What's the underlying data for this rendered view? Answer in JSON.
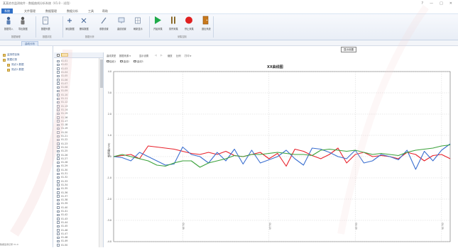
{
  "window": {
    "title": "某某综合监测软件 - 数据曲线分析系统（V1.0 - 试用）",
    "controls": [
      "?",
      "—",
      "□",
      "✕"
    ]
  },
  "menu": {
    "items": [
      {
        "label": "系统"
      },
      {
        "label": "文件管理"
      },
      {
        "label": "数据管理"
      },
      {
        "label": "数据分析"
      },
      {
        "label": "工具"
      },
      {
        "label": "帮助"
      }
    ]
  },
  "ribbon": {
    "tools": [
      {
        "label": "数据导入",
        "icon": "person-icon"
      },
      {
        "label": "导出数据",
        "icon": "person-icon"
      },
      {
        "label": "数据列表",
        "icon": "document-icon"
      },
      {
        "label": "添加数据",
        "icon": "add-icon"
      },
      {
        "label": "删除数据",
        "icon": "delete-icon"
      },
      {
        "label": "参数设置",
        "icon": "pen-icon"
      },
      {
        "label": "曲线设置",
        "icon": "screen-icon"
      },
      {
        "label": "刷新显示",
        "icon": "grid-icon"
      },
      {
        "label": "开始采集",
        "icon": "play-icon"
      },
      {
        "label": "暂停采集",
        "icon": "pause-icon"
      },
      {
        "label": "停止采集",
        "icon": "record-icon"
      },
      {
        "label": "退出系统",
        "icon": "exit-icon"
      }
    ],
    "groups": [
      {
        "label": "数据管理"
      },
      {
        "label": "数据浏览"
      },
      {
        "label": "数据分析"
      },
      {
        "label": "采集控制"
      }
    ]
  },
  "tabs": {
    "active": "曲线分析"
  },
  "tree": {
    "items": [
      {
        "label": "监测项目库"
      },
      {
        "label": "数据记录"
      },
      {
        "label": "测点1-数据"
      },
      {
        "label": "测点2-数据"
      }
    ]
  },
  "list": {
    "rows": [
      "01-01",
      "01-02",
      "01-03",
      "01-04",
      "01-05",
      "01-06",
      "01-07",
      "01-08",
      "01-09",
      "01-10",
      "01-11",
      "01-12",
      "01-13",
      "01-14",
      "01-15",
      "01-16",
      "01-17",
      "01-18",
      "01-19",
      "01-20",
      "01-21",
      "01-22",
      "01-23",
      "01-24",
      "01-25",
      "01-26",
      "01-27",
      "01-28",
      "01-29",
      "01-30",
      "01-31",
      "01-32",
      "01-33",
      "01-34",
      "01-35",
      "01-36",
      "01-37",
      "01-38",
      "01-39",
      "01-40",
      "01-41",
      "01-42",
      "01-43",
      "01-44",
      "01-45",
      "01-46",
      "01-47",
      "01-48",
      "01-49",
      "01-50"
    ]
  },
  "chart_toolbar": {
    "items": [
      "曲线类型",
      "数据来源 ▾",
      "显示设置",
      "◁",
      "▷",
      "缩放",
      "比例",
      "打印 ▾"
    ]
  },
  "series_checks": [
    {
      "label": "曲线1"
    },
    {
      "label": "曲线2"
    },
    {
      "label": "曲线3"
    }
  ],
  "side_button": {
    "label": "显示设置"
  },
  "statusbar": {
    "text": "数据监测记录 V1.0"
  },
  "chart_data": {
    "type": "line",
    "title": "XX曲线图",
    "ylabel": "位移量(mm)",
    "xlabel": "",
    "ylim": [
      -4,
      4
    ],
    "yticks": [
      4,
      3,
      2,
      1,
      0,
      -1,
      -2,
      -3,
      -4
    ],
    "ytick_labels": [
      "4.0",
      "3.0",
      "2.0",
      "1.0",
      "0.0",
      "-1.0",
      "-2.0",
      "-3.0",
      "-4.0"
    ],
    "x": [
      0,
      1,
      2,
      3,
      4,
      5,
      6,
      7,
      8,
      9,
      10,
      11,
      12,
      13,
      14,
      15,
      16,
      17,
      18,
      19,
      20,
      21,
      22,
      23,
      24,
      25,
      26,
      27,
      28,
      29,
      30,
      31,
      32,
      33,
      34,
      35,
      36,
      37,
      38,
      39
    ],
    "xtick_positions": [
      8,
      18,
      28,
      38
    ],
    "xtick_labels": [
      "01-09",
      "01-19",
      "01-29",
      "01-39"
    ],
    "grid": true,
    "series": [
      {
        "color": "#e8202a",
        "values": [
          0.0,
          0.05,
          0.1,
          -0.1,
          0.5,
          0.45,
          0.4,
          0.35,
          0.25,
          0.15,
          0.1,
          0.2,
          0.1,
          0.25,
          0.05,
          0.0,
          0.1,
          0.2,
          -0.1,
          0.15,
          -0.45,
          0.35,
          0.25,
          0.05,
          -0.1,
          0.1,
          0.4,
          -0.3,
          0.1,
          0.2,
          0.0,
          0.05,
          0.0,
          -0.1,
          0.2,
          0.1,
          -0.2,
          0.05,
          0.1,
          -0.1
        ]
      },
      {
        "color": "#3b6fd0",
        "values": [
          0.0,
          -0.05,
          -0.2,
          0.2,
          0.0,
          -0.2,
          -0.4,
          -0.35,
          0.45,
          0.1,
          0.0,
          -0.3,
          0.2,
          -0.2,
          0.35,
          -0.35,
          0.3,
          -0.3,
          -0.15,
          0.0,
          0.3,
          -0.1,
          -0.4,
          0.4,
          0.35,
          0.2,
          0.0,
          -0.1,
          0.3,
          -0.3,
          -0.2,
          0.1,
          0.0,
          -0.15,
          0.3,
          -0.6,
          0.25,
          -0.2,
          0.3,
          0.6
        ]
      },
      {
        "color": "#3aa13a",
        "values": [
          0.0,
          0.1,
          0.0,
          -0.1,
          -0.2,
          -0.4,
          -0.45,
          -0.3,
          -0.2,
          -0.2,
          -0.5,
          -0.3,
          -0.2,
          -0.1,
          0.05,
          0.0,
          0.1,
          0.1,
          0.15,
          0.2,
          0.15,
          0.1,
          0.1,
          0.05,
          0.3,
          0.35,
          0.3,
          0.25,
          0.3,
          0.2,
          0.1,
          0.15,
          0.1,
          0.05,
          0.2,
          0.3,
          0.35,
          0.4,
          0.5,
          0.55
        ]
      }
    ]
  }
}
